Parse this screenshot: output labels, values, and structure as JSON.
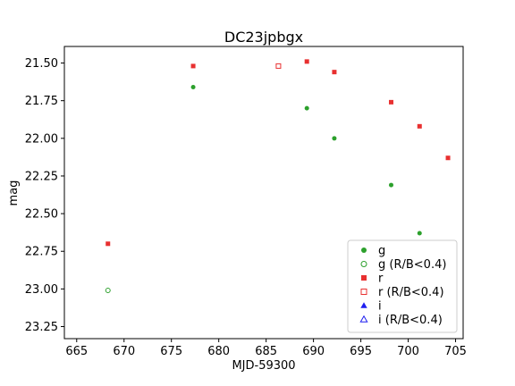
{
  "chart_data": {
    "type": "scatter",
    "title": "DC23jpbgx",
    "xlabel": "MJD-59300",
    "ylabel": "mag",
    "xlim": [
      663.7,
      705.8
    ],
    "ylim": [
      23.33,
      21.39
    ],
    "y_inverted": true,
    "grid": false,
    "legend_position": "lower-right",
    "xticks": [
      665,
      670,
      675,
      680,
      685,
      690,
      695,
      700,
      705
    ],
    "yticks": [
      21.5,
      21.75,
      22.0,
      22.25,
      22.5,
      22.75,
      23.0,
      23.25
    ],
    "ytick_labels": [
      "21.50",
      "21.75",
      "22.00",
      "22.25",
      "22.50",
      "22.75",
      "23.00",
      "23.25"
    ],
    "series": [
      {
        "name": "g",
        "color": "#2ca02c",
        "marker": "circle",
        "filled": true,
        "points": [
          [
            677.3,
            21.66
          ],
          [
            689.3,
            21.8
          ],
          [
            692.2,
            22.0
          ],
          [
            698.2,
            22.31
          ],
          [
            701.2,
            22.63
          ]
        ]
      },
      {
        "name": "g (R/B<0.4)",
        "color": "#2ca02c",
        "marker": "circle",
        "filled": false,
        "points": [
          [
            668.3,
            23.01
          ]
        ]
      },
      {
        "name": "r",
        "color": "#e83030",
        "marker": "square",
        "filled": true,
        "points": [
          [
            668.3,
            22.7
          ],
          [
            677.3,
            21.52
          ],
          [
            689.3,
            21.49
          ],
          [
            692.2,
            21.56
          ],
          [
            698.2,
            21.76
          ],
          [
            701.2,
            21.92
          ],
          [
            704.2,
            22.13
          ]
        ]
      },
      {
        "name": "r (R/B<0.4)",
        "color": "#e83030",
        "marker": "square",
        "filled": false,
        "points": [
          [
            686.3,
            21.52
          ]
        ]
      },
      {
        "name": "i",
        "color": "#1f1ff0",
        "marker": "triangle",
        "filled": true,
        "points": []
      },
      {
        "name": "i (R/B<0.4)",
        "color": "#1f1ff0",
        "marker": "triangle",
        "filled": false,
        "points": []
      }
    ]
  }
}
